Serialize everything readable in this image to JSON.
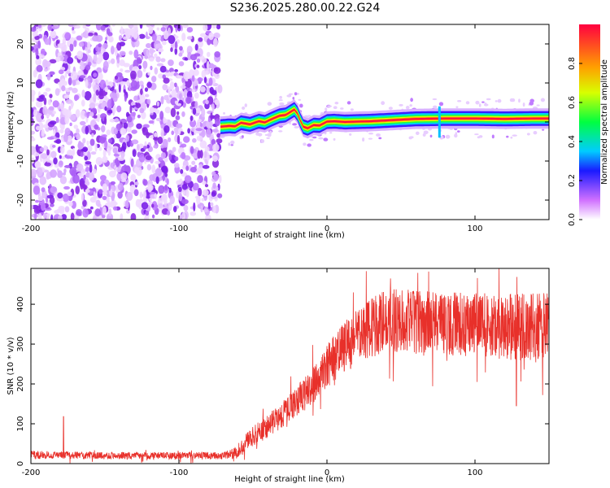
{
  "title": "S236.2025.280.00.22.G24",
  "chart_data": [
    {
      "type": "heatmap",
      "name": "spectrogram",
      "xlabel": "Height of straight line (km)",
      "ylabel": "Frequency (Hz)",
      "xlim": [
        -200,
        150
      ],
      "ylim": [
        -25,
        25
      ],
      "xticks": [
        "-200",
        "-100",
        "0",
        "100"
      ],
      "yticks": [
        "20",
        "10",
        "0",
        "-10",
        "-20"
      ],
      "noise_region_x": [
        -200,
        -72
      ],
      "signal_ridge": {
        "x": [
          -72,
          -66,
          -62,
          -58,
          -52,
          -46,
          -42,
          -37,
          -32,
          -28,
          -25,
          -22,
          -20,
          -18,
          -16,
          -13,
          -9,
          -5,
          0,
          5,
          12,
          20,
          30,
          40,
          50,
          60,
          80,
          100,
          120,
          140,
          150
        ],
        "y": [
          -1.2,
          -1.0,
          -1.1,
          -0.2,
          -0.6,
          0.2,
          -0.1,
          0.8,
          1.6,
          1.8,
          2.5,
          3.2,
          2.2,
          0.4,
          -1.2,
          -1.6,
          -0.8,
          -0.9,
          0.1,
          0.2,
          0.0,
          0.1,
          0.2,
          0.4,
          0.6,
          0.8,
          0.9,
          0.9,
          0.8,
          0.9,
          0.9
        ]
      },
      "colorbar": {
        "label": "Normalized spectral amplitude",
        "range": [
          0,
          1
        ],
        "ticks": [
          "0.0",
          "0.2",
          "0.4",
          "0.6",
          "0.8"
        ]
      }
    },
    {
      "type": "line",
      "name": "snr",
      "xlabel": "Height of straight line (km)",
      "ylabel": "SNR (10 * v/v)",
      "xlim": [
        -200,
        150
      ],
      "ylim": [
        0,
        490
      ],
      "xticks": [
        "-200",
        "-100",
        "0",
        "100"
      ],
      "yticks": [
        "400",
        "300",
        "200",
        "100",
        "0"
      ],
      "color": "#e8302a",
      "envelope": {
        "x": [
          -200,
          -150,
          -100,
          -70,
          -62,
          -55,
          -45,
          -35,
          -25,
          -15,
          -5,
          0,
          10,
          20,
          30,
          40,
          50,
          60,
          80,
          100,
          120,
          140,
          150
        ],
        "mean": [
          22,
          20,
          20,
          20,
          25,
          55,
          80,
          110,
          140,
          175,
          215,
          245,
          285,
          320,
          340,
          360,
          360,
          355,
          350,
          350,
          345,
          340,
          345
        ],
        "spread": [
          10,
          9,
          9,
          9,
          15,
          22,
          28,
          32,
          36,
          42,
          50,
          55,
          62,
          70,
          75,
          80,
          80,
          80,
          80,
          80,
          85,
          90,
          90
        ]
      },
      "spikes": [
        {
          "x": -178,
          "y": 118
        },
        {
          "x": 128,
          "y": 145
        }
      ]
    }
  ]
}
